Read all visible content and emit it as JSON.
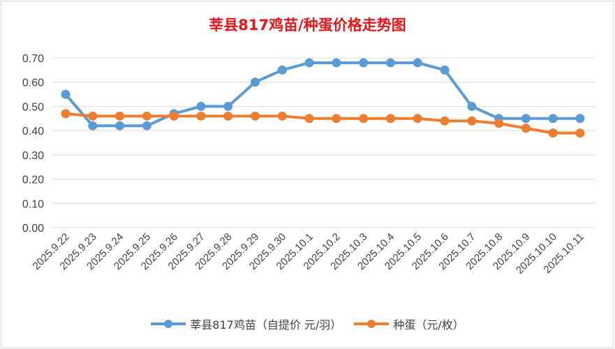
{
  "chart_data": {
    "type": "line",
    "title": "莘县817鸡苗/种蛋价格走势图",
    "categories": [
      "2025.9.22",
      "2025.9.23",
      "2025.9.24",
      "2025.9.25",
      "2025.9.26",
      "2025.9.27",
      "2025.9.28",
      "2025.9.29",
      "2025.9.30",
      "2025.10.1",
      "2025.10.2",
      "2025.10.3",
      "2025.10.4",
      "2025.10.5",
      "2025.10.6",
      "2025.10.7",
      "2025.10.8",
      "2025.10.9",
      "2025.10.10",
      "2025.10.11"
    ],
    "ylim": [
      0,
      0.7
    ],
    "yticks": [
      "0.00",
      "0.10",
      "0.20",
      "0.30",
      "0.40",
      "0.50",
      "0.60",
      "0.70"
    ],
    "grid": true,
    "legend": "bottom",
    "series": [
      {
        "name": "莘县817鸡苗（自提价 元/羽）",
        "color": "#5b9bd5",
        "values": [
          0.55,
          0.42,
          0.42,
          0.42,
          0.47,
          0.5,
          0.5,
          0.6,
          0.65,
          0.68,
          0.68,
          0.68,
          0.68,
          0.68,
          0.65,
          0.5,
          0.45,
          0.45,
          0.45,
          0.45
        ]
      },
      {
        "name": "种蛋（元/枚）",
        "color": "#ed7d31",
        "values": [
          0.47,
          0.46,
          0.46,
          0.46,
          0.46,
          0.46,
          0.46,
          0.46,
          0.46,
          0.45,
          0.45,
          0.45,
          0.45,
          0.45,
          0.44,
          0.44,
          0.43,
          0.41,
          0.39,
          0.39
        ]
      }
    ]
  }
}
